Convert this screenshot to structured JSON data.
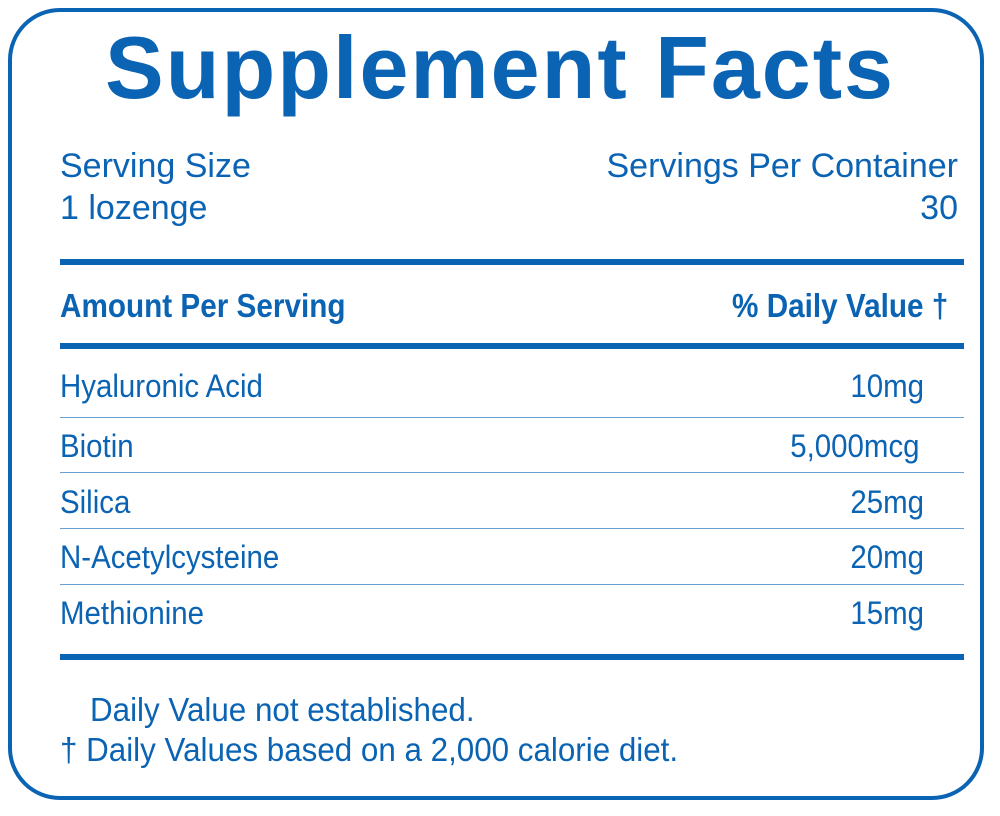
{
  "title": "Supplement Facts",
  "serving": {
    "size_label": "Serving Size",
    "size_value": "1 lozenge",
    "per_container_label": "Servings Per Container",
    "per_container_value": "30"
  },
  "header": {
    "amount_label": "Amount Per Serving",
    "dv_label": "% Daily Value †"
  },
  "rows": [
    {
      "name": "Hyaluronic Acid",
      "amount": "10mg"
    },
    {
      "name": "Biotin",
      "amount": "5,000mcg"
    },
    {
      "name": "Silica",
      "amount": "25mg"
    },
    {
      "name": "N-Acetylcysteine",
      "amount": "20mg"
    },
    {
      "name": "Methionine",
      "amount": "15mg"
    }
  ],
  "footnotes": [
    "Daily Value not established.",
    "† Daily Values based on a 2,000 calorie diet."
  ],
  "colors": {
    "accent": "#0b63b3"
  }
}
